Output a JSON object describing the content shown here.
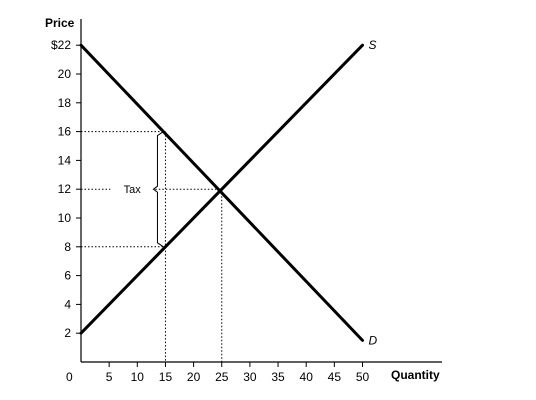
{
  "chart_data": {
    "type": "line",
    "ylabel": "Price",
    "xlabel": "Quantity",
    "origin_label": "0",
    "xlim": [
      0,
      55
    ],
    "ylim": [
      0,
      24
    ],
    "x_ticks": [
      5,
      10,
      15,
      20,
      25,
      30,
      35,
      40,
      45,
      50
    ],
    "x_tick_labels": [
      "5",
      "10",
      "15",
      "20",
      "25",
      "30",
      "35",
      "40",
      "45",
      "50"
    ],
    "y_ticks": [
      2,
      4,
      6,
      8,
      10,
      12,
      14,
      16,
      18,
      20,
      22
    ],
    "y_tick_labels": [
      "2",
      "4",
      "6",
      "8",
      "10",
      "12",
      "14",
      "16",
      "18",
      "20",
      "$22"
    ],
    "series": [
      {
        "name": "S",
        "x": [
          0,
          50
        ],
        "y": [
          2,
          22
        ]
      },
      {
        "name": "D",
        "x": [
          0,
          50
        ],
        "y": [
          22,
          1.5
        ]
      }
    ],
    "guides": {
      "equilibrium": {
        "x": 25,
        "y": 12
      },
      "tax_quantity": 15,
      "buyer_price": 16,
      "seller_price": 8
    },
    "annotation": "Tax"
  }
}
